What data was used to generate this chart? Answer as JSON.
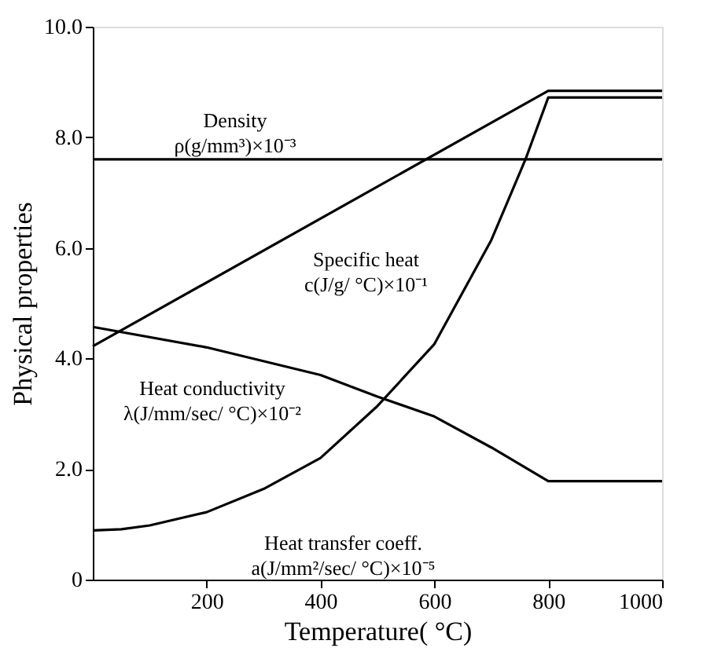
{
  "chart_data": {
    "type": "line",
    "xlabel": "Temperature( °C)",
    "ylabel": "Physical properties",
    "xlim": [
      0,
      1000
    ],
    "xticks": [
      200,
      400,
      600,
      800,
      1000
    ],
    "ylim": [
      0,
      10
    ],
    "yticks": [
      0,
      {
        "value": 2,
        "label": "2.0"
      },
      {
        "value": 4,
        "label": "4.0"
      },
      {
        "value": 6,
        "label": "6.0"
      },
      {
        "value": 8,
        "label": "8.0"
      },
      {
        "value": 10,
        "label": "10.0"
      }
    ],
    "grid": false,
    "legend": false,
    "marker": "none",
    "line_style": "solid",
    "series": [
      {
        "name": "Density\nρ(g/mm³)×10⁻³",
        "color": "#000000",
        "x": [
          0,
          1000
        ],
        "values": [
          7.6,
          7.6
        ]
      },
      {
        "name": "Specific heat\nc(J/g/ °C)×10⁻¹",
        "color": "#000000",
        "x": [
          0,
          800,
          1000
        ],
        "values": [
          4.22,
          8.84,
          8.84
        ]
      },
      {
        "name": "Heat conductivity\nλ(J/mm/sec/ °C)×10⁻²",
        "color": "#000000",
        "x": [
          0,
          200,
          400,
          500,
          600,
          700,
          800,
          1000
        ],
        "values": [
          4.57,
          4.2,
          3.7,
          3.31,
          2.95,
          2.39,
          1.78,
          1.78
        ]
      },
      {
        "name": "Heat transfer coeff.\na(J/mm²/sec/ °C)×10⁻⁵",
        "color": "#000000",
        "x": [
          0,
          50,
          100,
          200,
          300,
          400,
          500,
          600,
          700,
          760,
          800,
          1000
        ],
        "values": [
          0.89,
          0.91,
          0.98,
          1.22,
          1.64,
          2.2,
          3.14,
          4.26,
          6.14,
          7.6,
          8.72,
          8.72
        ]
      }
    ]
  }
}
